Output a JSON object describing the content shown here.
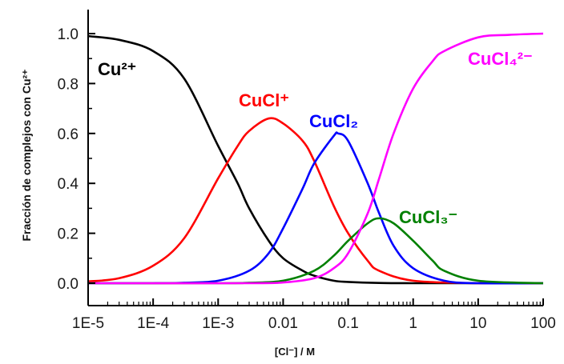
{
  "chart_data": {
    "type": "line",
    "x_scale": "log",
    "xlim": [
      1e-05,
      100
    ],
    "ylim": [
      0,
      1.0
    ],
    "x_ticks": [
      1e-05,
      0.0001,
      0.001,
      0.01,
      0.1,
      1,
      10,
      100
    ],
    "x_tick_labels": [
      "1E-5",
      "1E-4",
      "1E-3",
      "0.01",
      "0.1",
      "1",
      "10",
      "100"
    ],
    "y_ticks": [
      0.0,
      0.2,
      0.4,
      0.6,
      0.8,
      1.0
    ],
    "y_tick_labels": [
      "0.0",
      "0.2",
      "0.4",
      "0.6",
      "0.8",
      "1.0"
    ],
    "xlabel": "[Cl⁻] / M",
    "ylabel": "Fracción de complejos con Cu²⁺",
    "grid": false,
    "series": [
      {
        "name": "Cu²⁺",
        "color": "#000000",
        "x": [
          1e-05,
          3e-05,
          0.0001,
          0.0003,
          0.001,
          0.002,
          0.003,
          0.006,
          0.01,
          0.02,
          0.03,
          0.06,
          0.1,
          0.3,
          1,
          10,
          100
        ],
        "y": [
          0.99,
          0.975,
          0.93,
          0.82,
          0.55,
          0.4,
          0.3,
          0.17,
          0.1,
          0.05,
          0.03,
          0.01,
          0.005,
          0.001,
          0.0,
          0.0,
          0.0
        ]
      },
      {
        "name": "CuCl⁺",
        "color": "#ff0000",
        "x": [
          1e-05,
          3e-05,
          0.0001,
          0.0003,
          0.001,
          0.002,
          0.003,
          0.006,
          0.01,
          0.02,
          0.03,
          0.06,
          0.1,
          0.2,
          0.3,
          1,
          10,
          100
        ],
        "y": [
          0.007,
          0.02,
          0.07,
          0.18,
          0.42,
          0.55,
          0.61,
          0.66,
          0.64,
          0.57,
          0.49,
          0.31,
          0.2,
          0.09,
          0.05,
          0.01,
          0.0,
          0.0
        ]
      },
      {
        "name": "CuCl₂",
        "color": "#0000ff",
        "x": [
          1e-05,
          0.0001,
          0.0003,
          0.001,
          0.003,
          0.006,
          0.01,
          0.02,
          0.03,
          0.06,
          0.07,
          0.1,
          0.2,
          0.3,
          0.5,
          1,
          3,
          10,
          100
        ],
        "y": [
          0.0,
          0.0,
          0.002,
          0.01,
          0.05,
          0.12,
          0.22,
          0.38,
          0.48,
          0.59,
          0.6,
          0.57,
          0.4,
          0.28,
          0.15,
          0.06,
          0.01,
          0.0,
          0.0
        ]
      },
      {
        "name": "CuCl₃⁻",
        "color": "#008000",
        "x": [
          1e-05,
          0.001,
          0.003,
          0.01,
          0.03,
          0.06,
          0.1,
          0.2,
          0.3,
          0.5,
          1,
          2,
          3,
          10,
          100
        ],
        "y": [
          0.0,
          0.0,
          0.002,
          0.01,
          0.05,
          0.11,
          0.17,
          0.24,
          0.26,
          0.24,
          0.17,
          0.09,
          0.05,
          0.01,
          0.0
        ]
      },
      {
        "name": "CuCl₄²⁻",
        "color": "#ff00ff",
        "x": [
          1e-05,
          0.003,
          0.01,
          0.03,
          0.06,
          0.1,
          0.2,
          0.3,
          0.5,
          1,
          2,
          3,
          10,
          30,
          100
        ],
        "y": [
          0.0,
          0.0,
          0.003,
          0.02,
          0.06,
          0.12,
          0.28,
          0.42,
          0.6,
          0.78,
          0.89,
          0.93,
          0.985,
          0.995,
          1.0
        ]
      }
    ]
  }
}
